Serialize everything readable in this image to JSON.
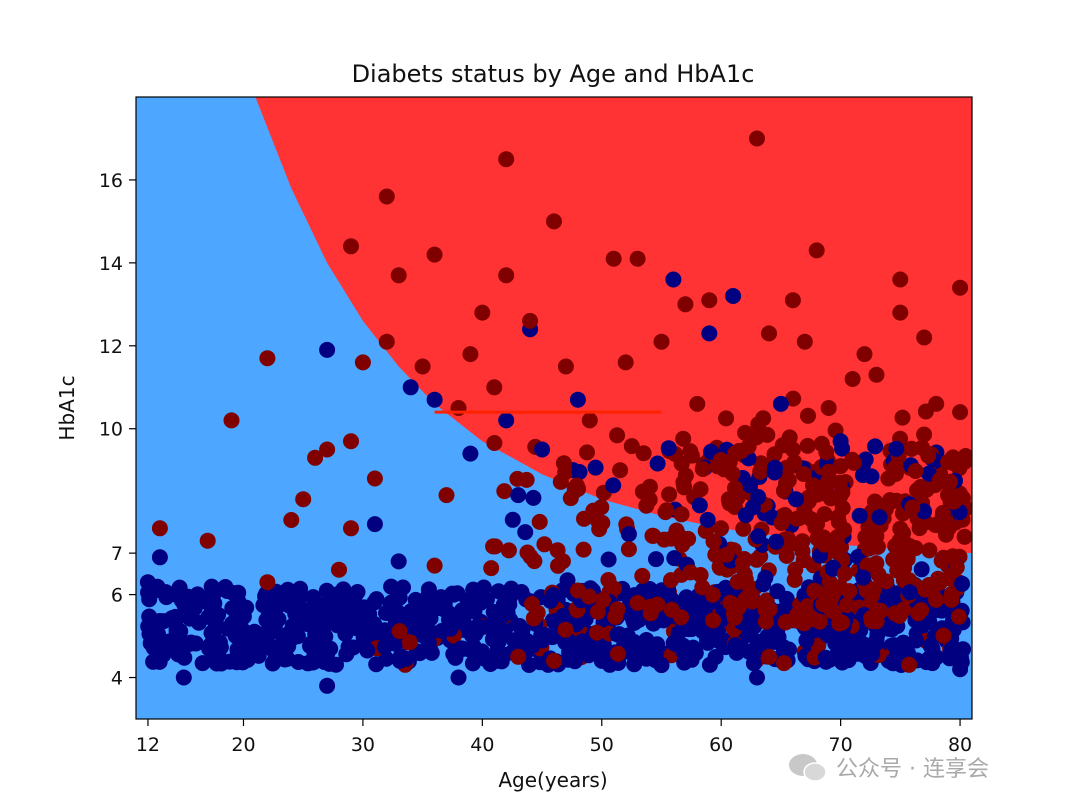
{
  "chart_data": {
    "type": "scatter",
    "title": "Diabets status by Age and HbA1c",
    "xlabel": "Age(years)",
    "ylabel": "HbA1c",
    "xlim": [
      11,
      81
    ],
    "ylim": [
      3,
      18
    ],
    "xticks": [
      12,
      20,
      30,
      40,
      50,
      60,
      70,
      80
    ],
    "yticks": [
      4,
      6,
      7,
      10,
      12,
      14,
      16
    ],
    "decision_boundary": {
      "description": "region colored by predicted class",
      "boundary_points": [
        [
          21,
          18
        ],
        [
          24,
          15.8
        ],
        [
          27,
          14
        ],
        [
          30,
          12.6
        ],
        [
          33,
          11.5
        ],
        [
          36,
          10.6
        ],
        [
          40,
          9.7
        ],
        [
          45,
          8.9
        ],
        [
          50,
          8.3
        ],
        [
          55,
          7.9
        ],
        [
          60,
          7.6
        ],
        [
          65,
          7.4
        ],
        [
          70,
          7.2
        ],
        [
          75,
          7.1
        ],
        [
          81,
          7.0
        ]
      ],
      "colors": {
        "non_diabetic": "#4da6ff",
        "diabetic": "#ff3333"
      }
    },
    "series": [
      {
        "color": "#000080",
        "points": [
          [
            12,
            6.3
          ],
          [
            13,
            6.9
          ],
          [
            27,
            11.9
          ],
          [
            34,
            11.0
          ],
          [
            36,
            10.7
          ],
          [
            44,
            12.4
          ],
          [
            48,
            10.7
          ],
          [
            56,
            13.6
          ],
          [
            59,
            12.3
          ],
          [
            61,
            13.2
          ],
          [
            65,
            10.6
          ],
          [
            70,
            9.7
          ],
          [
            39,
            9.4
          ],
          [
            45,
            9.5
          ],
          [
            42,
            10.2
          ],
          [
            31,
            7.7
          ],
          [
            15,
            4.0
          ],
          [
            27,
            3.8
          ],
          [
            38,
            4.0
          ],
          [
            63,
            4.0
          ],
          [
            33,
            6.8
          ],
          [
            50,
            4.4
          ],
          [
            80,
            4.2
          ],
          [
            55,
            4.3
          ],
          [
            43,
            8.4
          ]
        ]
      },
      {
        "color": "#800000",
        "points": [
          [
            13,
            7.6
          ],
          [
            17,
            7.3
          ],
          [
            19,
            10.2
          ],
          [
            22,
            11.7
          ],
          [
            24,
            7.8
          ],
          [
            25,
            8.3
          ],
          [
            26,
            9.3
          ],
          [
            27,
            9.5
          ],
          [
            29,
            9.7
          ],
          [
            29,
            7.6
          ],
          [
            30,
            11.6
          ],
          [
            31,
            8.8
          ],
          [
            32,
            12.1
          ],
          [
            32,
            15.6
          ],
          [
            33,
            13.7
          ],
          [
            29,
            14.4
          ],
          [
            36,
            14.2
          ],
          [
            35,
            11.5
          ],
          [
            37,
            8.4
          ],
          [
            38,
            10.5
          ],
          [
            39,
            11.8
          ],
          [
            40,
            12.8
          ],
          [
            42,
            16.5
          ],
          [
            42,
            13.7
          ],
          [
            44,
            12.6
          ],
          [
            46,
            15.0
          ],
          [
            47,
            11.5
          ],
          [
            51,
            14.1
          ],
          [
            53,
            14.1
          ],
          [
            52,
            11.6
          ],
          [
            55,
            12.1
          ],
          [
            57,
            13.0
          ],
          [
            59,
            13.1
          ],
          [
            63,
            17.0
          ],
          [
            66,
            13.1
          ],
          [
            68,
            14.3
          ],
          [
            71,
            11.2
          ],
          [
            75,
            13.6
          ],
          [
            75,
            12.8
          ],
          [
            77,
            12.2
          ],
          [
            80,
            13.4
          ],
          [
            64,
            12.3
          ],
          [
            67,
            12.1
          ],
          [
            69,
            10.5
          ],
          [
            72,
            11.8
          ],
          [
            73,
            11.3
          ],
          [
            78,
            10.6
          ],
          [
            79,
            9.2
          ],
          [
            80,
            10.4
          ],
          [
            41,
            11.0
          ],
          [
            49,
            10.2
          ],
          [
            58,
            10.6
          ],
          [
            62,
            9.9
          ],
          [
            66,
            9.5
          ],
          [
            70,
            9.1
          ],
          [
            74,
            8.8
          ],
          [
            76,
            8.1
          ],
          [
            46,
            4.4
          ],
          [
            64,
            4.5
          ],
          [
            43,
            4.5
          ],
          [
            22,
            6.3
          ],
          [
            28,
            6.6
          ],
          [
            36,
            6.7
          ],
          [
            48,
            6.1
          ],
          [
            53,
            5.8
          ]
        ]
      }
    ]
  },
  "watermark": {
    "text": "公众号 · 连享会"
  }
}
